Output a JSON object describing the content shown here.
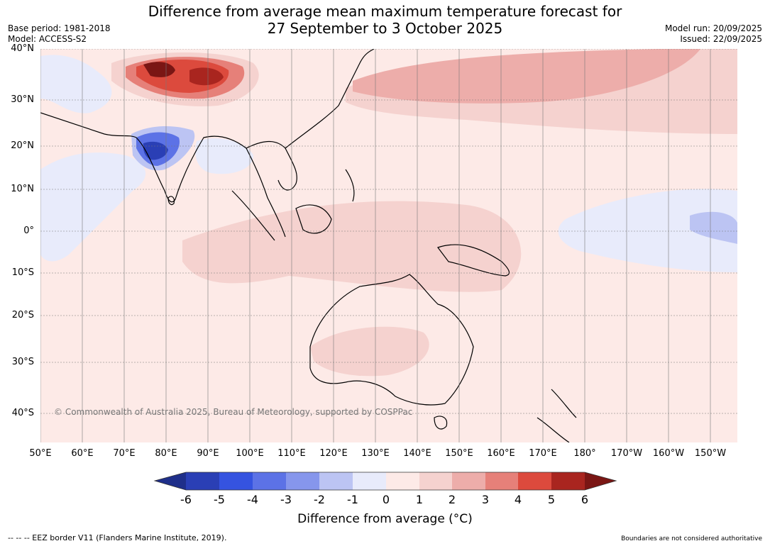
{
  "title": {
    "line1": "Difference from average mean maximum temperature forecast for",
    "line2": "27 September to 3 October 2025"
  },
  "meta": {
    "base_period": "Base period: 1981-2018",
    "model": "Model: ACCESS-S2",
    "model_run": "Model run: 20/09/2025",
    "issued": "Issued: 22/09/2025"
  },
  "axes": {
    "lat_labels": [
      "40°N",
      "30°N",
      "20°N",
      "10°N",
      "0°",
      "10°S",
      "20°S",
      "30°S",
      "40°S"
    ],
    "lon_labels": [
      "50°E",
      "60°E",
      "70°E",
      "80°E",
      "90°E",
      "100°E",
      "110°E",
      "120°E",
      "130°E",
      "140°E",
      "150°E",
      "160°E",
      "170°E",
      "180°",
      "170°W",
      "160°W",
      "150°W"
    ]
  },
  "copyright": "© Commonwealth of Australia 2025, Bureau of Meteorology, supported by COSPPac",
  "colorbar": {
    "ticks": [
      "-6",
      "-5",
      "-4",
      "-3",
      "-2",
      "-1",
      "0",
      "1",
      "2",
      "3",
      "4",
      "5",
      "6"
    ],
    "colors": [
      "#1f2f8a",
      "#2a3fb5",
      "#3553e0",
      "#5c72e6",
      "#8696ec",
      "#bcc4f3",
      "#e8ebfb",
      "#fdeae7",
      "#f5d2cf",
      "#edadaa",
      "#e68079",
      "#dc4a3d",
      "#a9251f",
      "#7a1614"
    ],
    "label": "Difference from average (°C)"
  },
  "footer": {
    "eez": "--  --  -- EEZ border V11 (Flanders Marine Institute, 2019).",
    "boundaries": "Boundaries are not considered authoritative"
  }
}
